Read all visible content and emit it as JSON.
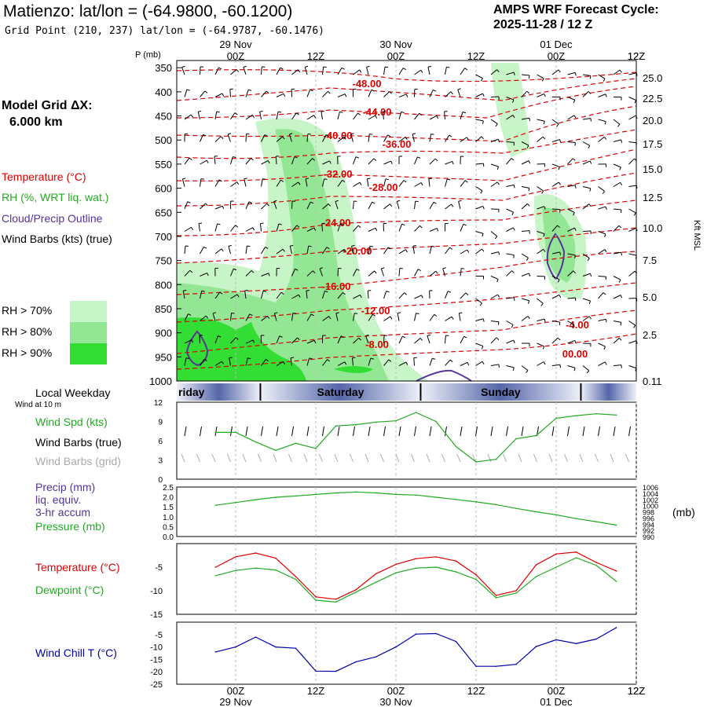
{
  "header": {
    "title": "Matienzo:  lat/lon = (-64.9800, -60.1200)",
    "subtitle": "Grid Point (210, 237) lat/lon = (-64.9787, -60.1476)",
    "cycle_line1": "AMPS WRF Forecast Cycle:",
    "cycle_line2": "2025-11-28 / 12  Z"
  },
  "left_panel": {
    "model_grid": "Model Grid ΔX:",
    "grid_value": "6.000 km",
    "legend_temperature": "Temperature (°C)",
    "legend_rh": "RH (%, WRT liq. wat.)",
    "legend_cloud": "Cloud/Precip Outline",
    "legend_wind": "Wind Barbs (kts) (true)",
    "rh70": "RH > 70%",
    "rh80": "RH > 80%",
    "rh90": "RH > 90%",
    "local_weekday": "Local Weekday",
    "wind_at": "Wind at 10 m",
    "wind_spd": "Wind Spd (kts)",
    "wind_barbs_true": "Wind Barbs (true)",
    "wind_barbs_grid": "Wind Barbs (grid)",
    "precip1": "Precip (mm)",
    "precip2": "liq. equiv.",
    "precip3": "3-hr accum",
    "pressure": "Pressure (mb)",
    "temperature": "Temperature (°C)",
    "dewpoint": "Dewpoint (°C)",
    "windchill": "Wind Chill T (°C)"
  },
  "colors": {
    "temperature": "#dd0000",
    "rh": "#22aa22",
    "cloud": "#553399",
    "wind": "#000000",
    "wind_grid": "#aaaaaa",
    "windchill": "#0000aa",
    "rh70_fill": "#c8f5c8",
    "rh80_fill": "#93e693",
    "rh90_fill": "#33dd33"
  },
  "chart_data": [
    {
      "type": "line",
      "name": "time-height cross-section",
      "x_hours": [
        0,
        78
      ],
      "top_ticks": [
        "00Z",
        "12Z",
        "00Z",
        "12Z",
        "00Z",
        "12Z"
      ],
      "top_dates": [
        "29 Nov",
        "30 Nov",
        "01 Dec"
      ],
      "ylabel": "P (mb)",
      "y_right_label": "Kft MSL",
      "pressure_levels": [
        350,
        400,
        450,
        500,
        550,
        600,
        650,
        700,
        750,
        800,
        850,
        900,
        950,
        1000
      ],
      "height_labels": [
        "25.0",
        "22.5",
        "20.0",
        "17.5",
        "15.0",
        "12.5",
        "10.0",
        "7.5",
        "5.0",
        "2.5",
        "0.11"
      ],
      "isotherm_labels": [
        "-48.00",
        "-44.00",
        "-40.00",
        "-36.00",
        "-32.00",
        "-28.00",
        "-24.00",
        "-20.00",
        "-16.00",
        "-12.00",
        "-8.00",
        "-4.00",
        "00.00"
      ]
    },
    {
      "type": "bar",
      "name": "local weekday",
      "days": [
        "Friday",
        "Saturday",
        "Sunday"
      ],
      "display": [
        "riday",
        "Saturday",
        "Sunday"
      ]
    },
    {
      "type": "line",
      "name": "wind speed",
      "ylim": [
        0,
        12
      ],
      "yticks": [
        "0",
        "3",
        "6",
        "9",
        "12"
      ],
      "x": [
        -3,
        0,
        3,
        6,
        9,
        12,
        15,
        18,
        21,
        24,
        27,
        30,
        33,
        36,
        39,
        42,
        45,
        48,
        51,
        54,
        57
      ],
      "values": [
        7.3,
        7.3,
        5.8,
        4.5,
        5.6,
        4.8,
        8.3,
        8.5,
        8.9,
        9.1,
        10.4,
        9.0,
        5.1,
        2.7,
        3.1,
        6.3,
        6.8,
        9.5,
        9.9,
        10.2,
        10.0
      ]
    },
    {
      "type": "line",
      "name": "pressure",
      "yticks_left": [
        "0.0",
        "0.5",
        "1.0",
        "1.5",
        "2.0",
        "2.5"
      ],
      "yticks_right": [
        "1006",
        "1004",
        "1002",
        "1000",
        "998",
        "996",
        "994",
        "992",
        "990"
      ],
      "y_right_label": "(mb)",
      "x": [
        -3,
        0,
        3,
        6,
        9,
        12,
        15,
        18,
        21,
        24,
        27,
        30,
        33,
        36,
        39,
        42,
        45,
        48,
        51,
        54,
        57
      ],
      "values": [
        1000.1,
        1001.0,
        1001.9,
        1002.7,
        1003.1,
        1003.6,
        1004.1,
        1004.4,
        1004.1,
        1003.6,
        1003.4,
        1002.7,
        1002.0,
        1001.2,
        1000.3,
        999.1,
        998.0,
        997.0,
        995.8,
        994.8,
        993.7
      ]
    },
    {
      "type": "line",
      "name": "temperature and dewpoint",
      "ylim": [
        -15,
        0
      ],
      "yticks": [
        "-5",
        "-10",
        "-15"
      ],
      "x": [
        -3,
        0,
        3,
        6,
        9,
        12,
        15,
        18,
        21,
        24,
        27,
        30,
        33,
        36,
        39,
        42,
        45,
        48,
        51,
        54,
        57
      ],
      "series": [
        {
          "name": "Temperature (°C)",
          "values": [
            -5.0,
            -2.8,
            -2.0,
            -3.1,
            -7.0,
            -11.3,
            -11.8,
            -9.8,
            -6.4,
            -4.4,
            -3.2,
            -2.8,
            -3.7,
            -6.6,
            -11.0,
            -10.0,
            -4.5,
            -2.2,
            -1.8,
            -4.0,
            -5.8
          ]
        },
        {
          "name": "Dewpoint (°C)",
          "values": [
            -6.8,
            -5.7,
            -5.2,
            -5.6,
            -7.6,
            -12.0,
            -12.4,
            -10.3,
            -8.2,
            -6.2,
            -5.2,
            -5.0,
            -6.0,
            -7.6,
            -11.5,
            -10.5,
            -7.0,
            -5.0,
            -3.0,
            -4.6,
            -8.0
          ]
        }
      ]
    },
    {
      "type": "line",
      "name": "wind chill",
      "ylim": [
        -25,
        0
      ],
      "yticks": [
        "-5",
        "-10",
        "-15",
        "-20",
        "-25"
      ],
      "x": [
        -3,
        0,
        3,
        6,
        9,
        12,
        15,
        18,
        21,
        24,
        27,
        30,
        33,
        36,
        39,
        42,
        45,
        48,
        51,
        54,
        57
      ],
      "series": [
        {
          "name": "Wind Chill T (°C)",
          "values": [
            -12.0,
            -10.0,
            -6.0,
            -10.0,
            -10.5,
            -19.7,
            -19.8,
            -16.0,
            -14.0,
            -10.0,
            -4.8,
            -4.6,
            -7.8,
            -17.8,
            -17.8,
            -17.0,
            -9.8,
            -7.1,
            -8.6,
            -6.8,
            -2.2
          ]
        }
      ]
    }
  ]
}
